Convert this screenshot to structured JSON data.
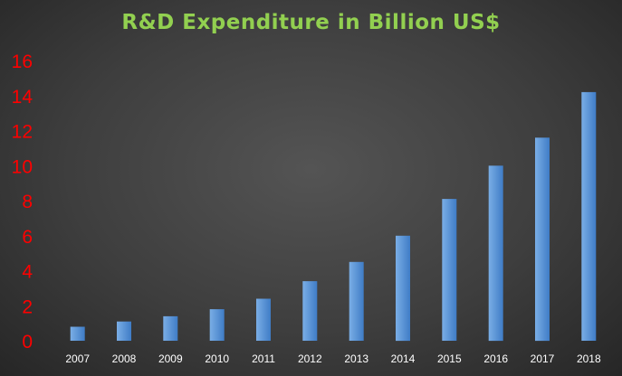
{
  "chart_data": {
    "type": "bar",
    "title": "R&D Expenditure in Billion US$",
    "categories": [
      "2007",
      "2008",
      "2009",
      "2010",
      "2011",
      "2012",
      "2013",
      "2014",
      "2015",
      "2016",
      "2017",
      "2018"
    ],
    "values": [
      0.8,
      1.1,
      1.4,
      1.8,
      2.4,
      3.4,
      4.5,
      6.0,
      8.1,
      10.0,
      11.6,
      14.2
    ],
    "ylim": [
      0,
      16
    ],
    "yticks": [
      0,
      2,
      4,
      6,
      8,
      10,
      12,
      14,
      16
    ],
    "grid": false,
    "legend": "none"
  },
  "colors": {
    "title": "#92d050",
    "ytick": "#ff0000",
    "xtick": "#ffffff",
    "bar_top": "#7aaee6",
    "bar_bottom": "#3f7cc6"
  }
}
